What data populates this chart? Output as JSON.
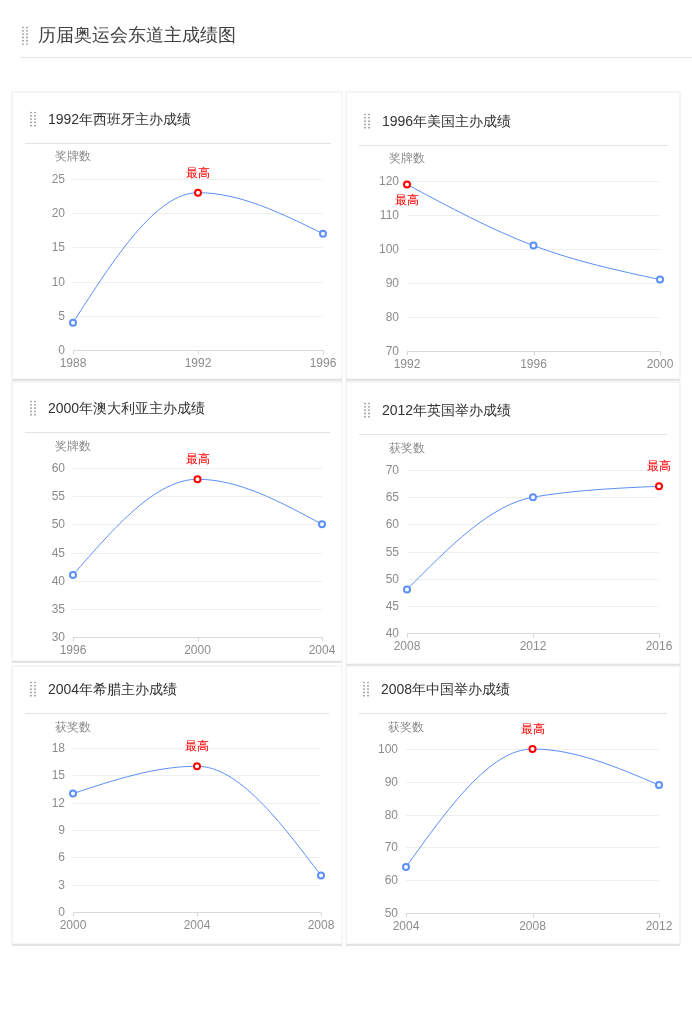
{
  "chart_data": [
    {
      "type": "other",
      "title": "历届奥运会东道主成绩图"
    },
    {
      "type": "line",
      "title": "1992年西班牙主办成绩",
      "ylabel": "奖牌数",
      "x": [
        1988,
        1992,
        1996
      ],
      "xlim": [
        1988,
        1996
      ],
      "xticks": [
        1988,
        1992,
        1996
      ],
      "ylim": [
        0,
        25
      ],
      "yticks": [
        0,
        5,
        10,
        15,
        20,
        25
      ],
      "grid": "y",
      "marker": "circle",
      "line_style": "solid",
      "series": [
        {
          "color": "#5b8ff9",
          "colors": [
            "#5b8ff9",
            "#ff0000",
            "#5b8ff9"
          ],
          "values": [
            4,
            23,
            17
          ]
        }
      ],
      "annotations": [
        {
          "text": "最高",
          "x": 1992,
          "y": 23
        }
      ]
    },
    {
      "type": "line",
      "title": "1996年美国主办成绩",
      "ylabel": "奖牌数",
      "x": [
        1992,
        1996,
        2000
      ],
      "xlim": [
        1992,
        2000
      ],
      "xticks": [
        1992,
        1996,
        2000
      ],
      "ylim": [
        70,
        120
      ],
      "yticks": [
        70,
        80,
        90,
        100,
        110,
        120
      ],
      "grid": "y",
      "marker": "circle",
      "line_style": "solid",
      "series": [
        {
          "color": "#5b8ff9",
          "colors": [
            "#ff0000",
            "#5b8ff9",
            "#5b8ff9"
          ],
          "values": [
            119,
            101,
            91
          ]
        }
      ],
      "annotations": [
        {
          "text": "最高",
          "x": 1992,
          "y": 119
        }
      ]
    },
    {
      "type": "line",
      "title": "2000年澳大利亚主办成绩",
      "ylabel": "奖牌数",
      "x": [
        1996,
        2000,
        2004
      ],
      "xlim": [
        1996,
        2004
      ],
      "xticks": [
        1996,
        2000,
        2004
      ],
      "ylim": [
        30,
        60
      ],
      "yticks": [
        30,
        35,
        40,
        45,
        50,
        55,
        60
      ],
      "grid": "y",
      "marker": "circle",
      "line_style": "solid",
      "series": [
        {
          "color": "#5b8ff9",
          "colors": [
            "#5b8ff9",
            "#ff0000",
            "#5b8ff9"
          ],
          "values": [
            41,
            58,
            50
          ]
        }
      ],
      "annotations": [
        {
          "text": "最高",
          "x": 2000,
          "y": 58
        }
      ]
    },
    {
      "type": "line",
      "title": "2012年英国举办成绩",
      "ylabel": "获奖数",
      "x": [
        2008,
        2012,
        2016
      ],
      "xlim": [
        2008,
        2016
      ],
      "xticks": [
        2008,
        2012,
        2016
      ],
      "ylim": [
        40,
        70
      ],
      "yticks": [
        40,
        45,
        50,
        55,
        60,
        65,
        70
      ],
      "grid": "y",
      "marker": "circle",
      "line_style": "solid",
      "series": [
        {
          "color": "#5b8ff9",
          "colors": [
            "#5b8ff9",
            "#5b8ff9",
            "#ff0000"
          ],
          "values": [
            48,
            65,
            67
          ]
        }
      ],
      "annotations": [
        {
          "text": "最高",
          "x": 2016,
          "y": 67
        }
      ]
    },
    {
      "type": "line",
      "title": "2004年希腊主办成绩",
      "ylabel": "获奖数",
      "x": [
        2000,
        2004,
        2008
      ],
      "xlim": [
        2000,
        2008
      ],
      "xticks": [
        2000,
        2004,
        2008
      ],
      "ylim": [
        0,
        18
      ],
      "yticks": [
        0,
        3,
        6,
        9,
        12,
        15,
        18
      ],
      "grid": "y",
      "marker": "circle",
      "line_style": "solid",
      "series": [
        {
          "color": "#5b8ff9",
          "colors": [
            "#5b8ff9",
            "#ff0000",
            "#5b8ff9"
          ],
          "values": [
            13,
            16,
            4
          ]
        }
      ],
      "annotations": [
        {
          "text": "最高",
          "x": 2004,
          "y": 16
        }
      ]
    },
    {
      "type": "line",
      "title": "2008年中国举办成绩",
      "ylabel": "获奖数",
      "x": [
        2004,
        2008,
        2012
      ],
      "xlim": [
        2004,
        2012
      ],
      "xticks": [
        2004,
        2008,
        2012
      ],
      "ylim": [
        50,
        100
      ],
      "yticks": [
        50,
        60,
        70,
        80,
        90,
        100
      ],
      "grid": "y",
      "marker": "circle",
      "line_style": "solid",
      "series": [
        {
          "color": "#5b8ff9",
          "colors": [
            "#5b8ff9",
            "#ff0000",
            "#5b8ff9"
          ],
          "values": [
            64,
            100,
            89
          ]
        }
      ],
      "annotations": [
        {
          "text": "最高",
          "x": 2008,
          "y": 100
        }
      ]
    }
  ]
}
